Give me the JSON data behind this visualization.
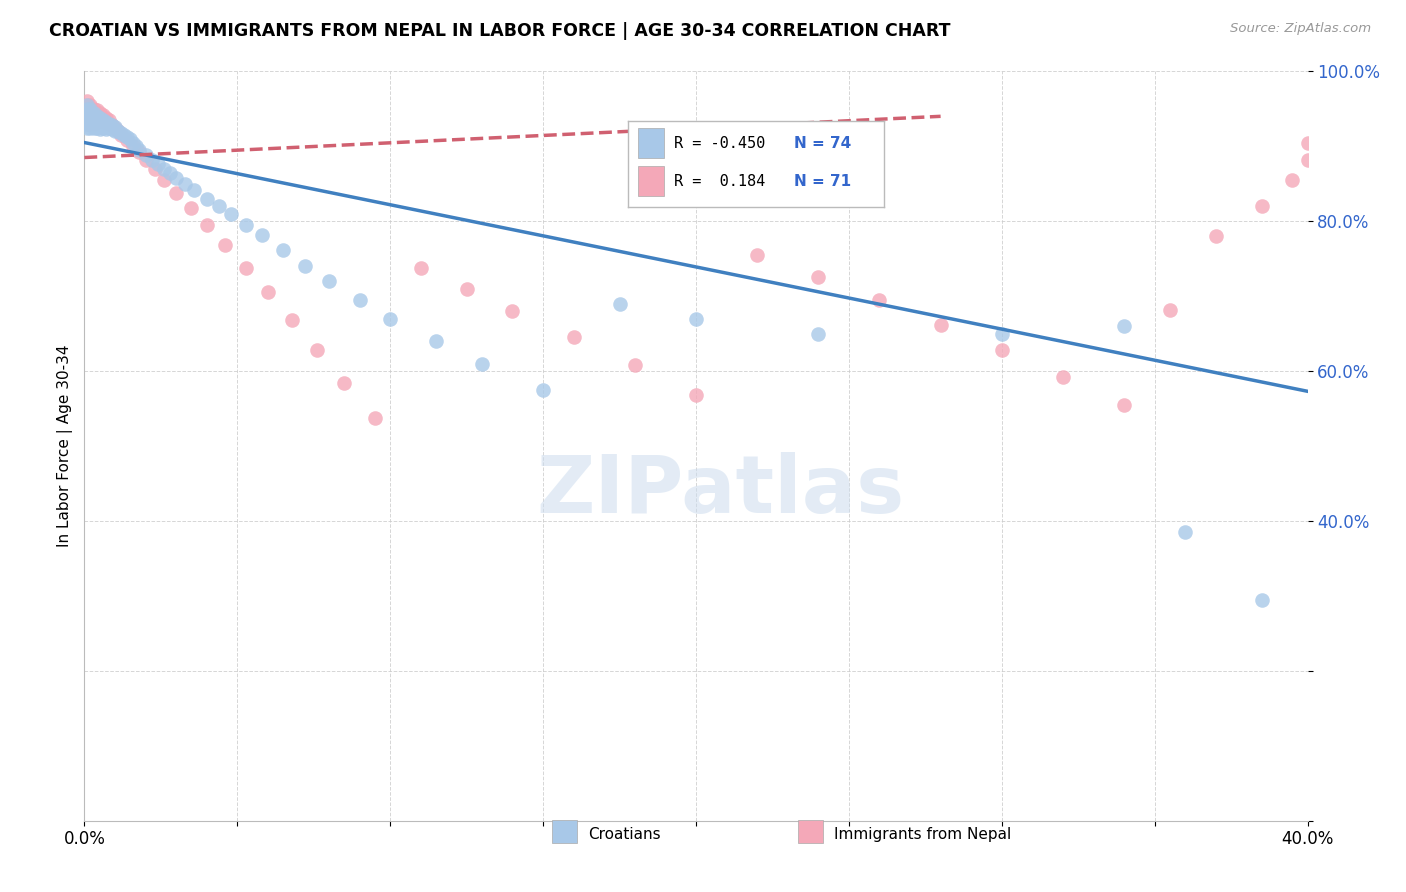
{
  "title": "CROATIAN VS IMMIGRANTS FROM NEPAL IN LABOR FORCE | AGE 30-34 CORRELATION CHART",
  "source": "Source: ZipAtlas.com",
  "ylabel": "In Labor Force | Age 30-34",
  "xlim": [
    0.0,
    0.4
  ],
  "ylim": [
    0.0,
    1.0
  ],
  "x_tick_positions": [
    0.0,
    0.05,
    0.1,
    0.15,
    0.2,
    0.25,
    0.3,
    0.35,
    0.4
  ],
  "x_tick_labels": [
    "0.0%",
    "",
    "",
    "",
    "",
    "",
    "",
    "",
    "40.0%"
  ],
  "y_tick_positions": [
    0.0,
    0.2,
    0.4,
    0.6,
    0.8,
    1.0
  ],
  "y_tick_labels": [
    "",
    "",
    "40.0%",
    "60.0%",
    "80.0%",
    "100.0%"
  ],
  "legend_label_blue": "Croatians",
  "legend_label_pink": "Immigrants from Nepal",
  "R_blue": -0.45,
  "N_blue": 74,
  "R_pink": 0.184,
  "N_pink": 71,
  "blue_color": "#a8c8e8",
  "pink_color": "#f4a8b8",
  "trendline_blue_color": "#4080c0",
  "trendline_pink_color": "#d06070",
  "watermark_text": "ZIPatlas",
  "blue_trend_x0": 0.0,
  "blue_trend_y0": 0.905,
  "blue_trend_x1": 0.4,
  "blue_trend_y1": 0.573,
  "pink_trend_x0": 0.0,
  "pink_trend_y0": 0.885,
  "pink_trend_x1": 0.28,
  "pink_trend_y1": 0.94,
  "blue_scatter_x": [
    0.001,
    0.001,
    0.001,
    0.001,
    0.001,
    0.001,
    0.001,
    0.002,
    0.002,
    0.002,
    0.002,
    0.002,
    0.002,
    0.003,
    0.003,
    0.003,
    0.003,
    0.003,
    0.004,
    0.004,
    0.004,
    0.004,
    0.005,
    0.005,
    0.005,
    0.005,
    0.006,
    0.006,
    0.006,
    0.007,
    0.007,
    0.007,
    0.008,
    0.008,
    0.009,
    0.009,
    0.01,
    0.01,
    0.011,
    0.012,
    0.013,
    0.014,
    0.015,
    0.016,
    0.017,
    0.018,
    0.02,
    0.022,
    0.024,
    0.026,
    0.028,
    0.03,
    0.033,
    0.036,
    0.04,
    0.044,
    0.048,
    0.053,
    0.058,
    0.065,
    0.072,
    0.08,
    0.09,
    0.1,
    0.115,
    0.13,
    0.15,
    0.175,
    0.2,
    0.24,
    0.3,
    0.34,
    0.36,
    0.385
  ],
  "blue_scatter_y": [
    0.955,
    0.95,
    0.945,
    0.94,
    0.935,
    0.93,
    0.925,
    0.95,
    0.945,
    0.94,
    0.935,
    0.93,
    0.925,
    0.945,
    0.94,
    0.935,
    0.93,
    0.925,
    0.94,
    0.935,
    0.93,
    0.925,
    0.938,
    0.933,
    0.928,
    0.923,
    0.935,
    0.93,
    0.925,
    0.932,
    0.928,
    0.923,
    0.93,
    0.925,
    0.928,
    0.923,
    0.926,
    0.921,
    0.92,
    0.918,
    0.915,
    0.912,
    0.91,
    0.905,
    0.9,
    0.895,
    0.888,
    0.882,
    0.876,
    0.87,
    0.865,
    0.858,
    0.85,
    0.842,
    0.83,
    0.82,
    0.81,
    0.795,
    0.782,
    0.762,
    0.74,
    0.72,
    0.695,
    0.67,
    0.64,
    0.61,
    0.575,
    0.69,
    0.67,
    0.65,
    0.65,
    0.66,
    0.385,
    0.295
  ],
  "pink_scatter_x": [
    0.001,
    0.001,
    0.001,
    0.001,
    0.001,
    0.001,
    0.001,
    0.002,
    0.002,
    0.002,
    0.002,
    0.002,
    0.002,
    0.003,
    0.003,
    0.003,
    0.003,
    0.003,
    0.004,
    0.004,
    0.004,
    0.004,
    0.005,
    0.005,
    0.005,
    0.006,
    0.006,
    0.006,
    0.007,
    0.007,
    0.008,
    0.008,
    0.009,
    0.01,
    0.011,
    0.012,
    0.014,
    0.016,
    0.018,
    0.02,
    0.023,
    0.026,
    0.03,
    0.035,
    0.04,
    0.046,
    0.053,
    0.06,
    0.068,
    0.076,
    0.085,
    0.095,
    0.11,
    0.125,
    0.14,
    0.16,
    0.18,
    0.2,
    0.22,
    0.24,
    0.26,
    0.28,
    0.3,
    0.32,
    0.34,
    0.355,
    0.37,
    0.385,
    0.395,
    0.4,
    0.4
  ],
  "pink_scatter_y": [
    0.96,
    0.955,
    0.95,
    0.945,
    0.94,
    0.935,
    0.93,
    0.955,
    0.95,
    0.945,
    0.94,
    0.935,
    0.93,
    0.95,
    0.945,
    0.94,
    0.935,
    0.93,
    0.948,
    0.943,
    0.938,
    0.933,
    0.945,
    0.94,
    0.935,
    0.942,
    0.937,
    0.932,
    0.938,
    0.933,
    0.935,
    0.93,
    0.928,
    0.925,
    0.92,
    0.915,
    0.908,
    0.9,
    0.892,
    0.882,
    0.87,
    0.855,
    0.838,
    0.818,
    0.795,
    0.768,
    0.738,
    0.705,
    0.668,
    0.628,
    0.584,
    0.538,
    0.738,
    0.71,
    0.68,
    0.645,
    0.608,
    0.568,
    0.755,
    0.725,
    0.695,
    0.662,
    0.628,
    0.592,
    0.555,
    0.682,
    0.78,
    0.82,
    0.855,
    0.882,
    0.905
  ]
}
